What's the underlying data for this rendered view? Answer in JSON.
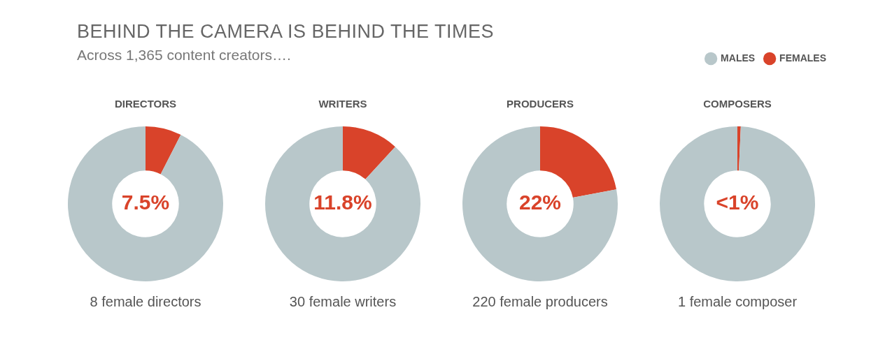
{
  "chart_data": [
    {
      "type": "other",
      "title": "BEHIND THE CAMERA IS BEHIND THE TIMES",
      "subtitle": "Across 1,365 content creators…."
    },
    {
      "type": "donut",
      "title": "DIRECTORS",
      "categories": [
        null,
        null
      ],
      "values": [
        7.5,
        92.5
      ],
      "colors": [
        "#d9432a",
        "#b8c7ca"
      ],
      "annotations": [
        "7.5%",
        "8 female directors"
      ]
    },
    {
      "type": "donut",
      "title": "WRITERS",
      "categories": [
        null,
        null
      ],
      "values": [
        11.8,
        88.2
      ],
      "colors": [
        "#d9432a",
        "#b8c7ca"
      ],
      "annotations": [
        "11.8%",
        "30 female writers"
      ]
    },
    {
      "type": "donut",
      "title": "PRODUCERS",
      "categories": [
        null,
        null
      ],
      "values": [
        22,
        78
      ],
      "colors": [
        "#d9432a",
        "#b8c7ca"
      ],
      "annotations": [
        "22%",
        "220 female producers"
      ]
    },
    {
      "type": "donut",
      "title": "COMPOSERS",
      "categories": [
        "FEMALES",
        "MALES"
      ],
      "values": [
        0.7,
        99.3
      ],
      "colors": [
        "#d9432a",
        "#b8c7ca"
      ],
      "annotations": [
        "<1%",
        "1 female composer"
      ],
      "legend": "top right"
    }
  ]
}
